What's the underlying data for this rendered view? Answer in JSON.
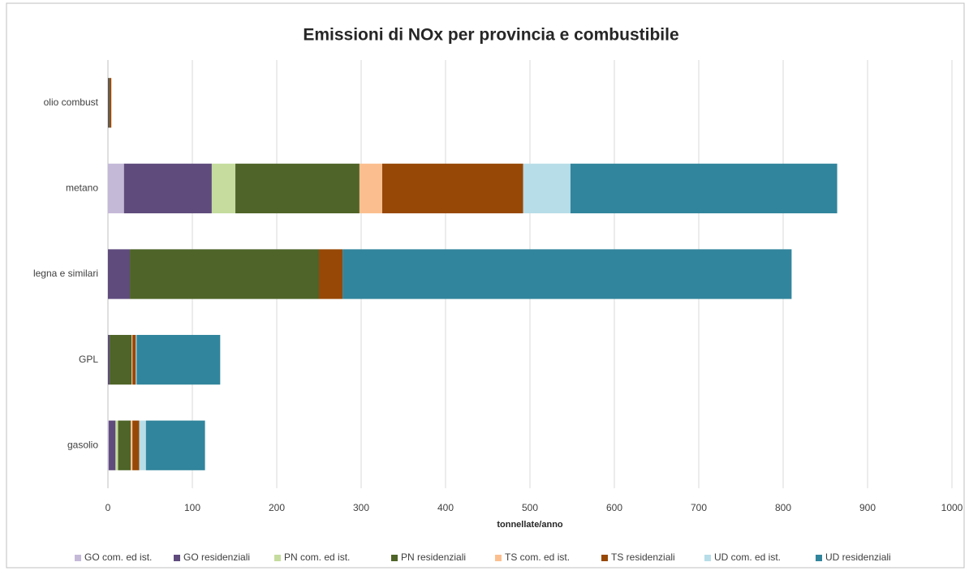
{
  "chart_data": {
    "type": "stacked_barh",
    "title": "Emissioni di NOx  per provincia e combustibile",
    "xlabel": "tonnellate/anno",
    "categories": [
      "olio combust",
      "metano",
      "legna e similari",
      "GPL",
      "gasolio"
    ],
    "series": [
      {
        "name": "GO com. ed ist.",
        "color": "#c5b9d8",
        "values": [
          0,
          19,
          0,
          0,
          1
        ]
      },
      {
        "name": "GO residenziali",
        "color": "#5f4b7c",
        "values": [
          1,
          104,
          26,
          2,
          8
        ]
      },
      {
        "name": "PN com. ed ist.",
        "color": "#c5dc9e",
        "values": [
          0,
          28,
          0,
          0,
          3
        ]
      },
      {
        "name": "PN residenziali",
        "color": "#4e6428",
        "values": [
          1,
          147,
          224,
          26,
          15
        ]
      },
      {
        "name": "TS com. ed ist.",
        "color": "#fbbf8f",
        "values": [
          0,
          27,
          0,
          1,
          2
        ]
      },
      {
        "name": "TS residenziali",
        "color": "#974806",
        "values": [
          2,
          167,
          28,
          4,
          8
        ]
      },
      {
        "name": "UD com. ed ist.",
        "color": "#b7dde8",
        "values": [
          0,
          56,
          0,
          1,
          8
        ]
      },
      {
        "name": "UD residenziali",
        "color": "#31859c",
        "values": [
          0,
          316,
          532,
          99,
          70
        ]
      }
    ],
    "xlim": [
      0,
      1000
    ],
    "xticks": [
      0,
      100,
      200,
      300,
      400,
      500,
      600,
      700,
      800,
      900,
      1000
    ],
    "grid": true,
    "legend": "bottom"
  }
}
